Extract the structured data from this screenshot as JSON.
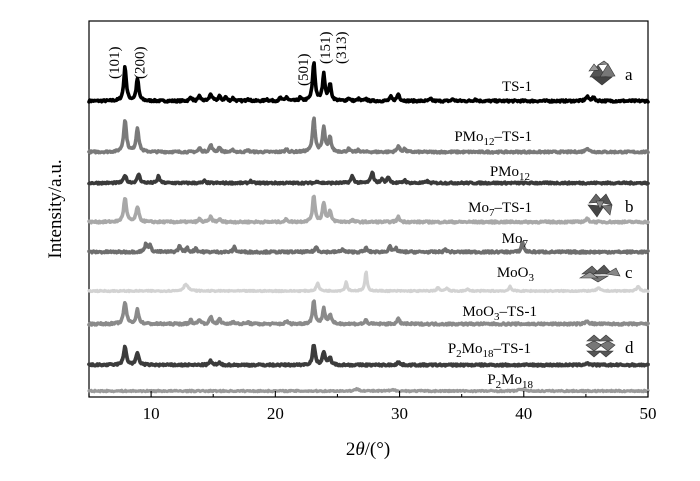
{
  "chart_data": {
    "type": "line",
    "xlabel_prefix": "2",
    "xlabel_symbol": "θ",
    "xlabel_suffix": "/(°)",
    "ylabel": "Intensity/a.u.",
    "xlim": [
      5,
      50
    ],
    "x_ticks": [
      10,
      20,
      30,
      40,
      50
    ],
    "x_tick_labels": [
      "10",
      "20",
      "30",
      "40",
      "50"
    ],
    "peak_labels": [
      {
        "text": "(101)",
        "x": 7.9
      },
      {
        "text": "(200)",
        "x": 8.9
      },
      {
        "text": "(501)",
        "x": 23.1
      },
      {
        "text": "(151)",
        "x": 23.9
      },
      {
        "text": "(313)",
        "x": 24.4
      }
    ],
    "series": [
      {
        "label_main": "TS-1",
        "label_sub": "",
        "label_suffix": "",
        "letter": "a",
        "icon": "ts1-framework-icon",
        "color": "#000000",
        "width": 3.6,
        "noise": 1.0,
        "peaks": [
          [
            7.9,
            34,
            0.12
          ],
          [
            8.9,
            22,
            0.12
          ],
          [
            13.2,
            4,
            0.1
          ],
          [
            13.9,
            5,
            0.1
          ],
          [
            14.8,
            7,
            0.12
          ],
          [
            15.5,
            5,
            0.1
          ],
          [
            16.0,
            4,
            0.1
          ],
          [
            16.6,
            3,
            0.1
          ],
          [
            17.8,
            3,
            0.1
          ],
          [
            19.3,
            2,
            0.1
          ],
          [
            20.4,
            3,
            0.1
          ],
          [
            20.9,
            4,
            0.1
          ],
          [
            22.0,
            3,
            0.1
          ],
          [
            23.1,
            38,
            0.12
          ],
          [
            23.9,
            26,
            0.12
          ],
          [
            24.4,
            16,
            0.12
          ],
          [
            25.9,
            3,
            0.1
          ],
          [
            26.7,
            2,
            0.1
          ],
          [
            27.3,
            2,
            0.1
          ],
          [
            29.3,
            4,
            0.1
          ],
          [
            29.9,
            7,
            0.12
          ],
          [
            32.5,
            2,
            0.1
          ],
          [
            34.3,
            2,
            0.1
          ],
          [
            36.1,
            2,
            0.1
          ],
          [
            45.1,
            4,
            0.15
          ],
          [
            45.6,
            3,
            0.15
          ]
        ]
      },
      {
        "label_main": "PMo",
        "label_sub": "12",
        "label_suffix": "–TS-1",
        "letter": "",
        "icon": "",
        "color": "#7a7a7a",
        "width": 3.6,
        "noise": 0.9,
        "peaks": [
          [
            7.9,
            32,
            0.13
          ],
          [
            8.9,
            24,
            0.13
          ],
          [
            13.9,
            4,
            0.1
          ],
          [
            14.8,
            7,
            0.12
          ],
          [
            15.5,
            5,
            0.1
          ],
          [
            16.6,
            2,
            0.1
          ],
          [
            17.8,
            2,
            0.1
          ],
          [
            20.9,
            3,
            0.1
          ],
          [
            23.1,
            34,
            0.12
          ],
          [
            23.9,
            24,
            0.12
          ],
          [
            24.4,
            14,
            0.12
          ],
          [
            25.9,
            3,
            0.1
          ],
          [
            26.7,
            2,
            0.1
          ],
          [
            29.9,
            6,
            0.12
          ],
          [
            30.4,
            3,
            0.1
          ],
          [
            45.1,
            4,
            0.15
          ]
        ]
      },
      {
        "label_main": "PMo",
        "label_sub": "12",
        "label_suffix": "",
        "letter": "",
        "icon": "",
        "color": "#3a3a3a",
        "width": 3.6,
        "noise": 0.9,
        "peaks": [
          [
            7.9,
            8,
            0.12
          ],
          [
            9.0,
            9,
            0.12
          ],
          [
            10.6,
            7,
            0.1
          ],
          [
            14.3,
            2,
            0.1
          ],
          [
            18.0,
            2,
            0.1
          ],
          [
            23.4,
            2,
            0.1
          ],
          [
            26.2,
            7,
            0.12
          ],
          [
            27.8,
            11,
            0.12
          ],
          [
            28.6,
            4,
            0.1
          ],
          [
            29.1,
            6,
            0.12
          ],
          [
            30.4,
            3,
            0.1
          ],
          [
            32.2,
            2,
            0.1
          ]
        ]
      },
      {
        "label_main": "Mo",
        "label_sub": "7",
        "label_suffix": "–TS-1",
        "letter": "b",
        "icon": "mo7-cluster-icon",
        "color": "#a8a8a8",
        "width": 3.6,
        "noise": 0.9,
        "peaks": [
          [
            7.9,
            24,
            0.13
          ],
          [
            8.9,
            15,
            0.13
          ],
          [
            13.9,
            3,
            0.1
          ],
          [
            14.8,
            5,
            0.12
          ],
          [
            15.5,
            3,
            0.1
          ],
          [
            20.9,
            3,
            0.1
          ],
          [
            23.1,
            26,
            0.12
          ],
          [
            23.9,
            19,
            0.12
          ],
          [
            24.4,
            10,
            0.12
          ],
          [
            26.2,
            2,
            0.1
          ],
          [
            29.9,
            5,
            0.12
          ],
          [
            45.1,
            3,
            0.15
          ]
        ]
      },
      {
        "label_main": "Mo",
        "label_sub": "7",
        "label_suffix": "",
        "letter": "",
        "icon": "",
        "color": "#6e6e6e",
        "width": 3.6,
        "noise": 1.0,
        "peaks": [
          [
            9.6,
            8,
            0.12
          ],
          [
            9.9,
            6,
            0.12
          ],
          [
            12.3,
            6,
            0.12
          ],
          [
            12.9,
            4,
            0.1
          ],
          [
            13.6,
            4,
            0.1
          ],
          [
            16.7,
            5,
            0.1
          ],
          [
            23.3,
            5,
            0.12
          ],
          [
            25.4,
            3,
            0.1
          ],
          [
            27.3,
            4,
            0.1
          ],
          [
            29.2,
            6,
            0.1
          ],
          [
            29.7,
            4,
            0.1
          ],
          [
            33.7,
            3,
            0.1
          ],
          [
            39.9,
            10,
            0.1
          ]
        ]
      },
      {
        "label_main": "MoO",
        "label_sub": "3",
        "label_suffix": "",
        "letter": "c",
        "icon": "moo3-layer-icon",
        "color": "#d2d2d2",
        "width": 3.2,
        "noise": 0.6,
        "peaks": [
          [
            12.8,
            7,
            0.2
          ],
          [
            23.4,
            8,
            0.12
          ],
          [
            25.7,
            9,
            0.1
          ],
          [
            27.3,
            19,
            0.1
          ],
          [
            33.1,
            4,
            0.1
          ],
          [
            33.8,
            3,
            0.1
          ],
          [
            35.5,
            2,
            0.1
          ],
          [
            38.9,
            5,
            0.1
          ],
          [
            46.0,
            3,
            0.15
          ],
          [
            49.2,
            4,
            0.15
          ]
        ]
      },
      {
        "label_main": "MoO",
        "label_sub": "3",
        "label_suffix": "–TS-1",
        "letter": "",
        "icon": "",
        "color": "#8a8a8a",
        "width": 3.6,
        "noise": 1.0,
        "peaks": [
          [
            7.9,
            22,
            0.13
          ],
          [
            8.9,
            14,
            0.13
          ],
          [
            13.2,
            4,
            0.1
          ],
          [
            13.9,
            5,
            0.1
          ],
          [
            14.8,
            7,
            0.12
          ],
          [
            15.5,
            5,
            0.1
          ],
          [
            16.6,
            3,
            0.1
          ],
          [
            17.8,
            2,
            0.1
          ],
          [
            20.9,
            3,
            0.1
          ],
          [
            23.1,
            23,
            0.12
          ],
          [
            23.9,
            15,
            0.12
          ],
          [
            24.4,
            9,
            0.12
          ],
          [
            27.3,
            4,
            0.1
          ],
          [
            29.9,
            5,
            0.12
          ],
          [
            45.1,
            3,
            0.15
          ]
        ]
      },
      {
        "label_main": "P",
        "label_sub": "2",
        "label_suffix": "Mo",
        "label_sub2": "18",
        "label_suffix2": "–TS-1",
        "letter": "d",
        "icon": "p2mo18-cluster-icon",
        "color": "#3c3c3c",
        "width": 3.8,
        "noise": 0.9,
        "peaks": [
          [
            7.9,
            18,
            0.13
          ],
          [
            8.9,
            12,
            0.13
          ],
          [
            14.8,
            4,
            0.12
          ],
          [
            15.5,
            2,
            0.1
          ],
          [
            23.1,
            20,
            0.12
          ],
          [
            23.9,
            13,
            0.12
          ],
          [
            24.4,
            7,
            0.12
          ],
          [
            29.9,
            3,
            0.12
          ],
          [
            45.1,
            2,
            0.15
          ]
        ]
      },
      {
        "label_main": "P",
        "label_sub": "2",
        "label_suffix": "Mo",
        "label_sub2": "18",
        "label_suffix2": "",
        "letter": "",
        "icon": "",
        "color": "#9a9a9a",
        "width": 3.2,
        "noise": 0.7,
        "peaks": [
          [
            26.6,
            2,
            0.2
          ],
          [
            29.5,
            1,
            0.2
          ],
          [
            39.8,
            2,
            0.2
          ]
        ]
      }
    ]
  }
}
